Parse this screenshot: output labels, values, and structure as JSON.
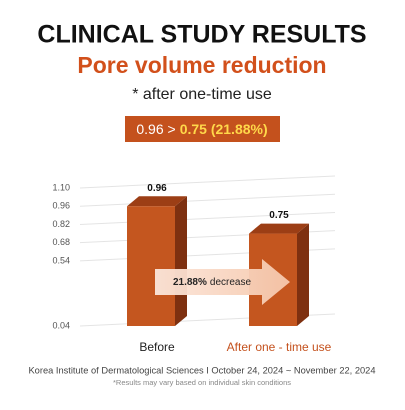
{
  "chart_data": {
    "type": "bar3d",
    "title": "CLINICAL STUDY RESULTS",
    "subtitle": "Pore volume reduction",
    "note": "* after one-time use",
    "badge": [
      "0.96 >",
      "0.75 (21.88%)"
    ],
    "categories": [
      "Before",
      "After one - time use"
    ],
    "values": [
      0.96,
      0.75
    ],
    "color": "#c4561f",
    "ylim": [
      0.04,
      1.1
    ],
    "yticks": [
      {
        "value": 1.1,
        "label": "1.10"
      },
      0.96,
      0.82,
      0.68,
      0.54,
      0.04
    ],
    "grid": true,
    "arrow_label": [
      "21.88%",
      "decrease"
    ],
    "source": "Korea Institute of Dermatological Sciences I October 24, 2024 ~ November 22, 2024",
    "disclaimer": "*Results may vary based on individual skin conditions"
  }
}
